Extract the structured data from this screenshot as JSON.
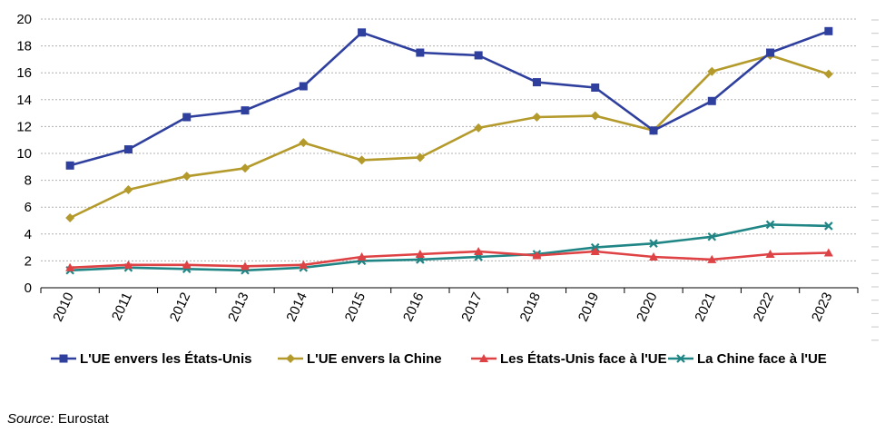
{
  "chart_data": {
    "type": "line",
    "categories": [
      "2010",
      "2011",
      "2012",
      "2013",
      "2014",
      "2015",
      "2016",
      "2017",
      "2018",
      "2019",
      "2020",
      "2021",
      "2022",
      "2023"
    ],
    "ylim": [
      0,
      20
    ],
    "yticks": [
      "0",
      "2",
      "4",
      "6",
      "8",
      "10",
      "12",
      "14",
      "16",
      "18",
      "20"
    ],
    "grid": "horizontal",
    "legend_position": "bottom",
    "series": [
      {
        "name": "L'UE envers les États-Unis",
        "color": "#2e3f9e",
        "marker": "square",
        "values": [
          9.1,
          10.3,
          12.7,
          13.2,
          15.0,
          19.0,
          17.5,
          17.3,
          15.3,
          14.9,
          11.7,
          13.9,
          17.5,
          19.1
        ]
      },
      {
        "name": "L'UE envers la Chine",
        "color": "#b39a2b",
        "marker": "diamond",
        "values": [
          5.2,
          7.3,
          8.3,
          8.9,
          10.8,
          9.5,
          9.7,
          11.9,
          12.7,
          12.8,
          11.7,
          16.1,
          17.3,
          15.9
        ]
      },
      {
        "name": "Les États-Unis face à l'UE",
        "color": "#df4244",
        "marker": "triangle",
        "values": [
          1.5,
          1.7,
          1.7,
          1.6,
          1.7,
          2.3,
          2.5,
          2.7,
          2.4,
          2.7,
          2.3,
          2.1,
          2.5,
          2.6
        ]
      },
      {
        "name": "La Chine face à l'UE",
        "color": "#208585",
        "marker": "x",
        "values": [
          1.3,
          1.5,
          1.4,
          1.3,
          1.5,
          2.0,
          2.1,
          2.3,
          2.5,
          3.0,
          3.3,
          3.8,
          4.7,
          4.6
        ]
      }
    ]
  },
  "source": {
    "label": "Source:",
    "text": " Eurostat"
  }
}
